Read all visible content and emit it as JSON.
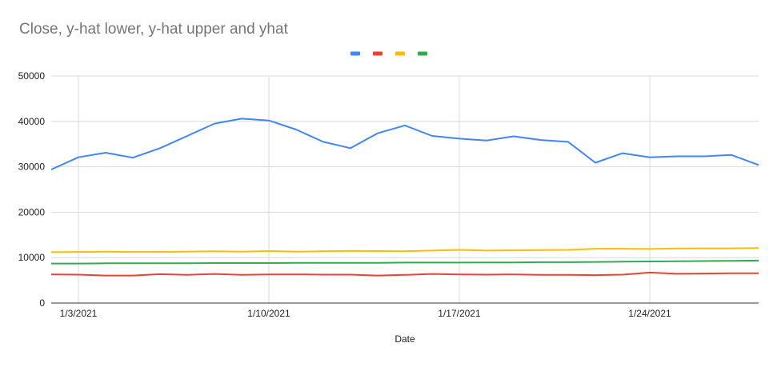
{
  "chart_data": {
    "type": "line",
    "title": "Close, y-hat lower, y-hat upper and yhat",
    "xlabel": "Date",
    "ylabel": "",
    "ylim": [
      0,
      50000
    ],
    "yticks": [
      "0",
      "10000",
      "20000",
      "30000",
      "40000",
      "50000"
    ],
    "grid": true,
    "legend_placement": "top-center",
    "x": [
      "2021-01-02",
      "2021-01-03",
      "2021-01-04",
      "2021-01-05",
      "2021-01-06",
      "2021-01-07",
      "2021-01-08",
      "2021-01-09",
      "2021-01-10",
      "2021-01-11",
      "2021-01-12",
      "2021-01-13",
      "2021-01-14",
      "2021-01-15",
      "2021-01-16",
      "2021-01-17",
      "2021-01-18",
      "2021-01-19",
      "2021-01-20",
      "2021-01-21",
      "2021-01-22",
      "2021-01-23",
      "2021-01-24",
      "2021-01-25",
      "2021-01-26",
      "2021-01-27",
      "2021-01-28"
    ],
    "xticks": [
      {
        "x": "2021-01-03",
        "label": "1/3/2021"
      },
      {
        "x": "2021-01-10",
        "label": "1/10/2021"
      },
      {
        "x": "2021-01-17",
        "label": "1/17/2021"
      },
      {
        "x": "2021-01-24",
        "label": "1/24/2021"
      }
    ],
    "series": [
      {
        "color": "#4285f4",
        "values": [
          29400,
          32100,
          33100,
          32000,
          34100,
          36800,
          39500,
          40600,
          40200,
          38200,
          35500,
          34100,
          37400,
          39100,
          36800,
          36200,
          35800,
          36700,
          35900,
          35500,
          30900,
          33000,
          32100,
          32300,
          32300,
          32600,
          30400
        ]
      },
      {
        "color": "#ea4335",
        "values": [
          6300,
          6250,
          6050,
          6050,
          6350,
          6200,
          6400,
          6200,
          6300,
          6300,
          6250,
          6250,
          6050,
          6200,
          6400,
          6300,
          6250,
          6300,
          6200,
          6200,
          6150,
          6250,
          6700,
          6450,
          6500,
          6550,
          6550
        ]
      },
      {
        "color": "#fbbc04",
        "values": [
          11200,
          11250,
          11300,
          11250,
          11250,
          11300,
          11400,
          11300,
          11450,
          11300,
          11400,
          11500,
          11450,
          11400,
          11550,
          11700,
          11550,
          11600,
          11650,
          11700,
          11950,
          11950,
          11900,
          12000,
          12050,
          12050,
          12100
        ]
      },
      {
        "color": "#34a853",
        "values": [
          8700,
          8700,
          8750,
          8750,
          8750,
          8750,
          8800,
          8800,
          8800,
          8850,
          8850,
          8850,
          8850,
          8900,
          8900,
          8900,
          8950,
          8950,
          9000,
          9000,
          9050,
          9100,
          9150,
          9200,
          9250,
          9300,
          9350
        ]
      }
    ]
  }
}
